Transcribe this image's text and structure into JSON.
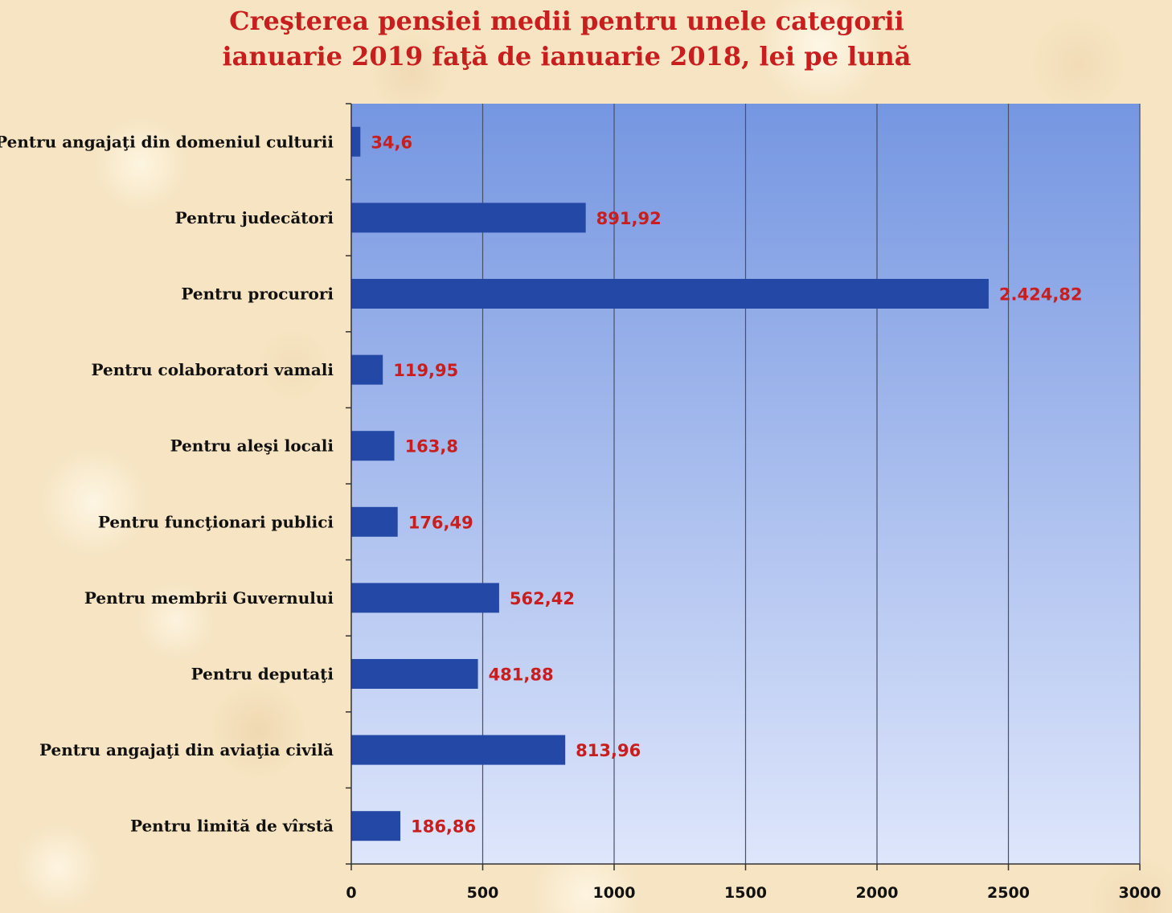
{
  "title": {
    "line1": "Creşterea pensiei medii pentru unele categorii",
    "line2": "ianuarie 2019 faţă de ianuarie 2018, lei pe lună"
  },
  "colors": {
    "bar": "#2448a5",
    "title": "#c81e1e",
    "data_label": "#c81e1e",
    "plot_bg_top": "#7596e1",
    "plot_bg_bottom": "#dee6fb",
    "gridline": "#4a4f68"
  },
  "chart_data": {
    "type": "bar",
    "orientation": "horizontal",
    "title": "Creşterea pensiei medii pentru unele categorii ianuarie 2019 faţă de ianuarie 2018, lei pe lună",
    "categories": [
      "Pentru angajaţi din domeniul culturii",
      "Pentru judecători",
      "Pentru procurori",
      "Pentru colaboratori vamali",
      "Pentru aleşi locali",
      "Pentru funcţionari publici",
      "Pentru membrii Guvernului",
      "Pentru deputaţi",
      "Pentru angajaţi din aviaţia civilă",
      "Pentru limită de vîrstă"
    ],
    "values": [
      34.6,
      891.92,
      2424.82,
      119.95,
      163.8,
      176.49,
      562.42,
      481.88,
      813.96,
      186.86
    ],
    "data_labels": [
      "34,6",
      "891,92",
      "2.424,82",
      "119,95",
      "163,8",
      "176,49",
      "562,42",
      "481,88",
      "813,96",
      "186,86"
    ],
    "xlim": [
      0,
      3000
    ],
    "xticks": [
      "0",
      "500",
      "1000",
      "1500",
      "2000",
      "2500",
      "3000"
    ],
    "grid": "vertical",
    "legend": "none"
  }
}
